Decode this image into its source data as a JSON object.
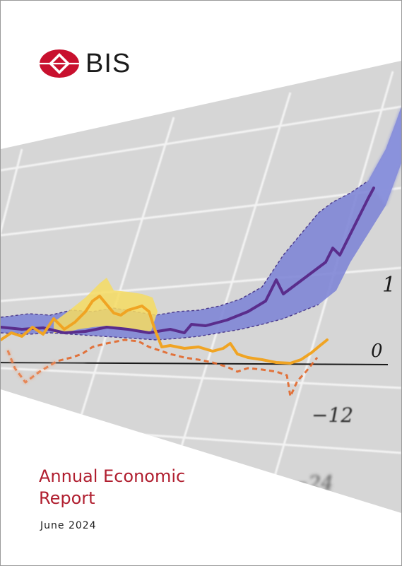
{
  "brand": {
    "name": "BIS",
    "colors": {
      "red": "#c8102e",
      "title_red": "#b01e2f"
    }
  },
  "cover_art": {
    "axis_labels": [
      "1",
      "0",
      "−12",
      "−24"
    ]
  },
  "report": {
    "title_line1": "Annual Economic",
    "title_line2": "Report",
    "date": "June 2024"
  }
}
